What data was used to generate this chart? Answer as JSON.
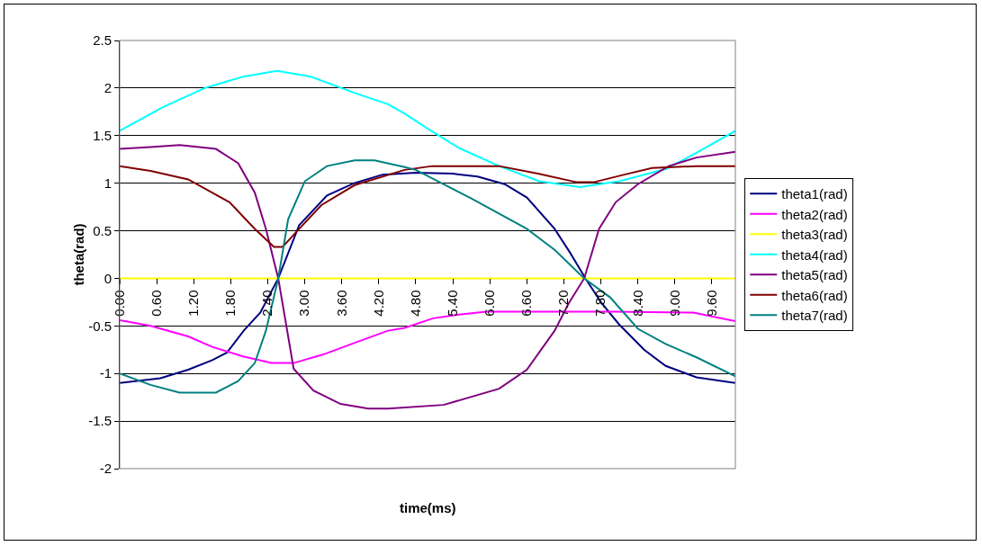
{
  "chart_data": {
    "type": "line",
    "xlabel": "time(ms)",
    "ylabel": "theta(rad)",
    "xlim": [
      0,
      9.98
    ],
    "ylim": [
      -2,
      2.5
    ],
    "xticks": [
      {
        "value": 0,
        "label": "0.00"
      },
      {
        "value": 0.6,
        "label": "0.60"
      },
      {
        "value": 1.2,
        "label": "1.20"
      },
      {
        "value": 1.8,
        "label": "1.80"
      },
      {
        "value": 2.4,
        "label": "2.40"
      },
      {
        "value": 3,
        "label": "3.00"
      },
      {
        "value": 3.6,
        "label": "3.60"
      },
      {
        "value": 4.2,
        "label": "4.20"
      },
      {
        "value": 4.8,
        "label": "4.80"
      },
      {
        "value": 5.4,
        "label": "5.40"
      },
      {
        "value": 6,
        "label": "6.00"
      },
      {
        "value": 6.6,
        "label": "6.60"
      },
      {
        "value": 7.2,
        "label": "7.20"
      },
      {
        "value": 7.8,
        "label": "7.80"
      },
      {
        "value": 8.4,
        "label": "8.40"
      },
      {
        "value": 9,
        "label": "9.00"
      },
      {
        "value": 9.6,
        "label": "9.60"
      }
    ],
    "yticks": [
      -2,
      -1.5,
      -1,
      -0.5,
      0,
      0.5,
      1,
      1.5,
      2,
      2.5
    ],
    "grid": "y",
    "legend": "right",
    "marker": "none",
    "line_style": "solid",
    "series": [
      {
        "name": "theta1(rad)",
        "color": "#000080",
        "x": [
          0,
          0.66,
          1.11,
          1.5,
          1.74,
          2.01,
          2.28,
          2.57,
          2.91,
          3.36,
          3.8,
          4.26,
          4.8,
          5.4,
          5.8,
          6.24,
          6.6,
          7.05,
          7.3,
          7.55,
          7.8,
          8.09,
          8.5,
          8.85,
          9.35,
          9.98
        ],
        "values": [
          -1.1,
          -1.05,
          -0.96,
          -0.86,
          -0.78,
          -0.55,
          -0.36,
          0,
          0.56,
          0.87,
          1,
          1.09,
          1.11,
          1.1,
          1.07,
          0.99,
          0.85,
          0.52,
          0.27,
          0,
          -0.25,
          -0.48,
          -0.75,
          -0.92,
          -1.04,
          -1.1
        ]
      },
      {
        "name": "theta2(rad)",
        "color": "#ff00ff",
        "x": [
          0,
          0.5,
          1.11,
          1.5,
          2,
          2.46,
          2.82,
          3.3,
          3.8,
          4.35,
          4.62,
          5.08,
          5.5,
          5.94,
          7,
          8,
          9.3,
          9.6,
          9.98
        ],
        "values": [
          -0.44,
          -0.5,
          -0.61,
          -0.72,
          -0.82,
          -0.89,
          -0.89,
          -0.8,
          -0.68,
          -0.55,
          -0.52,
          -0.42,
          -0.38,
          -0.35,
          -0.35,
          -0.35,
          -0.36,
          -0.4,
          -0.45
        ]
      },
      {
        "name": "theta3(rad)",
        "color": "#ffff00",
        "x": [
          0,
          9.98
        ],
        "values": [
          0,
          0
        ]
      },
      {
        "name": "theta4(rad)",
        "color": "#00ffff",
        "x": [
          0,
          0.7,
          1.38,
          2,
          2.55,
          3.1,
          3.8,
          4.35,
          4.62,
          5,
          5.5,
          6.15,
          6.8,
          7.46,
          8.1,
          8.86,
          9.35,
          9.98
        ],
        "values": [
          1.55,
          1.8,
          2,
          2.12,
          2.18,
          2.12,
          1.95,
          1.83,
          1.73,
          1.57,
          1.37,
          1.18,
          1.02,
          0.96,
          1.02,
          1.15,
          1.32,
          1.55
        ]
      },
      {
        "name": "theta5(rad)",
        "color": "#800080",
        "x": [
          0,
          0.5,
          0.97,
          1.56,
          1.92,
          2.19,
          2.37,
          2.57,
          2.82,
          3.14,
          3.58,
          4.03,
          4.35,
          5.25,
          6.15,
          6.6,
          7.05,
          7.28,
          7.53,
          7.77,
          8.04,
          8.4,
          8.9,
          9.35,
          9.98
        ],
        "values": [
          1.36,
          1.38,
          1.4,
          1.36,
          1.21,
          0.9,
          0.52,
          0,
          -0.95,
          -1.18,
          -1.32,
          -1.37,
          -1.37,
          -1.33,
          -1.16,
          -0.96,
          -0.55,
          -0.26,
          0,
          0.52,
          0.8,
          0.99,
          1.18,
          1.27,
          1.33
        ]
      },
      {
        "name": "theta6(rad)",
        "color": "#800000",
        "x": [
          0,
          0.5,
          1.11,
          1.78,
          2.19,
          2.5,
          2.64,
          2.91,
          3.27,
          3.81,
          4.62,
          5.07,
          6.15,
          6.78,
          7.41,
          7.68,
          8.18,
          8.63,
          9.35,
          9.98
        ],
        "values": [
          1.18,
          1.13,
          1.04,
          0.8,
          0.52,
          0.33,
          0.33,
          0.52,
          0.77,
          0.98,
          1.14,
          1.18,
          1.18,
          1.1,
          1.01,
          1.01,
          1.09,
          1.16,
          1.18,
          1.18
        ]
      },
      {
        "name": "theta7(rad)",
        "color": "#008080",
        "x": [
          0,
          0.5,
          0.97,
          1.56,
          1.92,
          2.19,
          2.37,
          2.57,
          2.73,
          3,
          3.36,
          3.81,
          4.13,
          4.62,
          4.8,
          5.7,
          6.6,
          7.05,
          7.53,
          7.95,
          8.4,
          8.85,
          9.35,
          9.98
        ],
        "values": [
          -1,
          -1.12,
          -1.2,
          -1.2,
          -1.08,
          -0.89,
          -0.55,
          0,
          0.62,
          1.02,
          1.18,
          1.24,
          1.24,
          1.17,
          1.14,
          0.84,
          0.52,
          0.3,
          0,
          -0.2,
          -0.53,
          -0.69,
          -0.83,
          -1.03
        ]
      }
    ]
  }
}
